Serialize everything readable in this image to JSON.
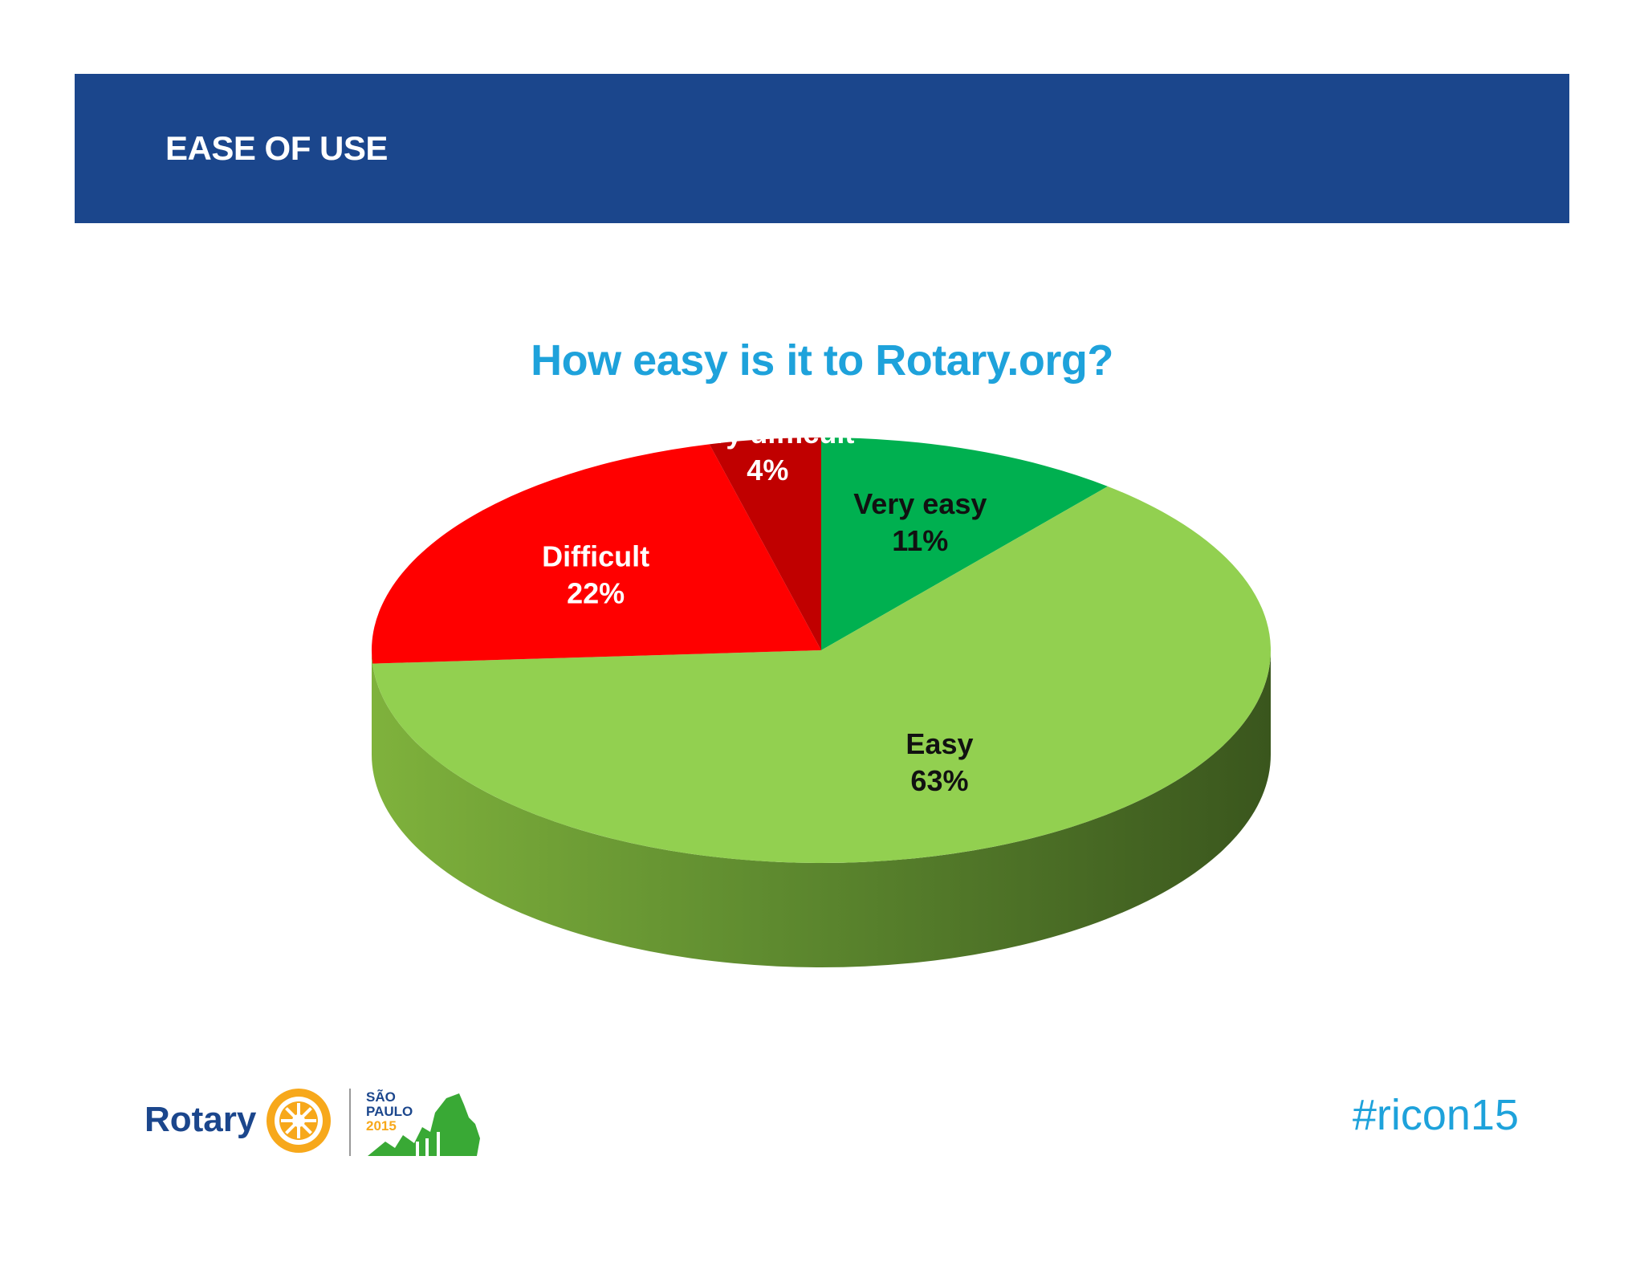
{
  "header": {
    "title": "EASE OF USE"
  },
  "chart_data": {
    "type": "pie",
    "title": "How easy is it to Rotary.org?",
    "slices": [
      {
        "label": "Very easy",
        "value": 11,
        "value_label": "11%",
        "color": "#00b050",
        "label_color": "#111111"
      },
      {
        "label": "Easy",
        "value": 63,
        "value_label": "63%",
        "color": "#92d050",
        "label_color": "#111111"
      },
      {
        "label": "Difficult",
        "value": 22,
        "value_label": "22%",
        "color": "#ff0000",
        "label_color": "#ffffff"
      },
      {
        "label": "Very difficult",
        "value": 4,
        "value_label": "4%",
        "color": "#c00000",
        "label_color": "#ffffff"
      }
    ]
  },
  "footer": {
    "logo_text": "Rotary",
    "event_line1": "SÃO",
    "event_line2": "PAULO",
    "event_year": "2015",
    "hashtag": "#ricon15"
  },
  "colors": {
    "header_band": "#1b468c",
    "title": "#1ea2db",
    "rotary_blue": "#1b468c",
    "rotary_gold": "#f7a81b",
    "event_green": "#39a935"
  }
}
